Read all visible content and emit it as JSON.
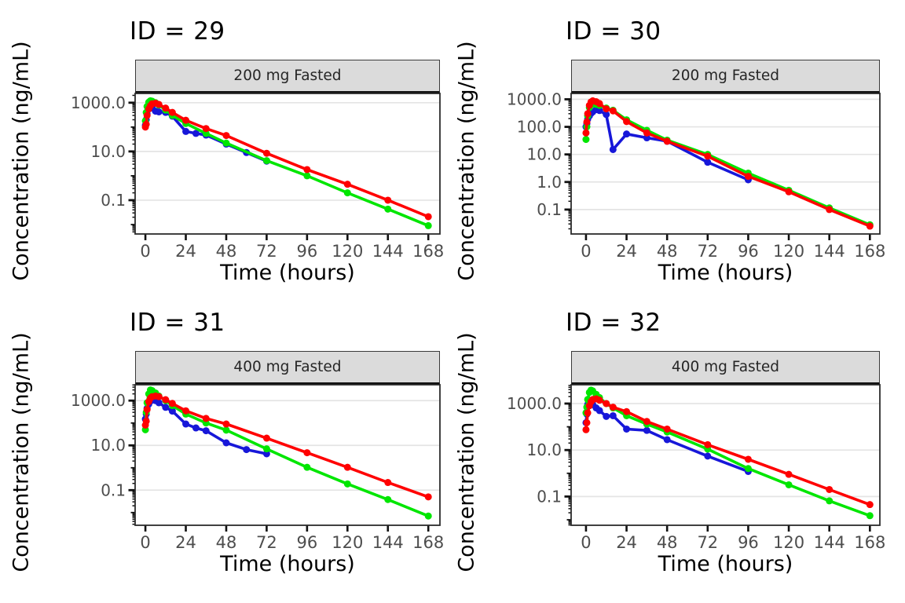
{
  "figure": {
    "background": "#FFFFFF",
    "tick_label_color": "#4D4D4D",
    "grid_color": "#E4E4E4",
    "panel_border_color": "#2B2B2B",
    "strip_background": "#DBDBDB",
    "series_colors": {
      "red": "#FF0000",
      "green": "#00E600",
      "blue": "#1717D9"
    }
  },
  "chart_data": [
    {
      "type": "line",
      "title": "ID = 29",
      "facet_label": "200 mg Fasted",
      "xlabel": "Time (hours)",
      "ylabel": "Concentration (ng/mL)",
      "x_ticks": [
        0,
        24,
        48,
        72,
        96,
        120,
        144,
        168
      ],
      "y_ticks": [
        1000.0,
        10.0,
        0.1
      ],
      "xlim": [
        -6.1,
        174.9
      ],
      "ylim": [
        0.0041,
        2400
      ],
      "y_scale": "log10",
      "grid": "major-y",
      "legend": "none",
      "series": [
        {
          "name": "blue",
          "color": "#1717D9",
          "x": [
            0,
            0.5,
            1,
            2,
            3,
            4,
            6,
            8,
            12,
            16,
            24,
            30,
            36,
            48,
            60,
            72
          ],
          "y": [
            120,
            200,
            350,
            550,
            650,
            600,
            450,
            420,
            400,
            280,
            66,
            55,
            47,
            20,
            9,
            4
          ]
        },
        {
          "name": "green",
          "color": "#00E600",
          "x": [
            0,
            0.5,
            1,
            2,
            3,
            4,
            6,
            8,
            12,
            16,
            24,
            36,
            48,
            72,
            96,
            120,
            144,
            168
          ],
          "y": [
            180,
            400,
            700,
            1050,
            1200,
            1150,
            1000,
            800,
            500,
            300,
            140,
            55,
            22,
            4.2,
            1.0,
            0.2,
            0.043,
            0.009
          ]
        },
        {
          "name": "red",
          "color": "#FF0000",
          "x": [
            0,
            0.5,
            1,
            2,
            3,
            4,
            6,
            8,
            12,
            16,
            24,
            36,
            48,
            72,
            96,
            120,
            144,
            168
          ],
          "y": [
            100,
            130,
            300,
            550,
            750,
            900,
            950,
            850,
            600,
            400,
            190,
            87,
            45,
            8.4,
            1.8,
            0.45,
            0.1,
            0.021
          ]
        }
      ]
    },
    {
      "type": "line",
      "title": "ID = 30",
      "facet_label": "200 mg Fasted",
      "xlabel": "Time (hours)",
      "ylabel": "Concentration (ng/mL)",
      "x_ticks": [
        0,
        24,
        48,
        72,
        96,
        120,
        144,
        168
      ],
      "y_ticks": [
        1000.0,
        100.0,
        10.0,
        1.0,
        0.1
      ],
      "xlim": [
        -8.8,
        173.9
      ],
      "ylim": [
        0.013,
        1630
      ],
      "y_scale": "log10",
      "grid": "major-y",
      "legend": "none",
      "series": [
        {
          "name": "blue",
          "color": "#1717D9",
          "x": [
            0,
            0.5,
            1,
            2,
            3,
            4,
            6,
            8,
            12,
            16,
            24,
            36,
            48,
            72,
            96
          ],
          "y": [
            100,
            130,
            190,
            250,
            310,
            350,
            420,
            390,
            280,
            15,
            55,
            40,
            30,
            5.2,
            1.2
          ]
        },
        {
          "name": "green",
          "color": "#00E600",
          "x": [
            0,
            0.5,
            1,
            2,
            3,
            4,
            6,
            8,
            12,
            16,
            24,
            36,
            48,
            72,
            96,
            120,
            144,
            168
          ],
          "y": [
            35,
            100,
            250,
            500,
            650,
            680,
            650,
            600,
            480,
            400,
            180,
            75,
            33,
            10,
            2.1,
            0.5,
            0.115,
            0.028
          ]
        },
        {
          "name": "red",
          "color": "#FF0000",
          "x": [
            0,
            0.5,
            1,
            2,
            3,
            4,
            6,
            8,
            12,
            16,
            24,
            36,
            48,
            72,
            96,
            120,
            144,
            168
          ],
          "y": [
            60,
            150,
            300,
            600,
            800,
            880,
            820,
            700,
            450,
            380,
            155,
            60,
            30,
            8.6,
            1.6,
            0.44,
            0.1,
            0.025
          ]
        }
      ]
    },
    {
      "type": "line",
      "title": "ID = 31",
      "facet_label": "400 mg Fasted",
      "xlabel": "Time (hours)",
      "ylabel": "Concentration (ng/mL)",
      "x_ticks": [
        0,
        24,
        48,
        72,
        96,
        120,
        144,
        168
      ],
      "y_ticks": [
        1000.0,
        10.0,
        0.1
      ],
      "xlim": [
        -6.1,
        174.9
      ],
      "ylim": [
        0.0027,
        5120
      ],
      "y_scale": "log10",
      "grid": "major-y",
      "legend": "none",
      "series": [
        {
          "name": "blue",
          "color": "#1717D9",
          "x": [
            0,
            0.5,
            1,
            2,
            3,
            4,
            6,
            8,
            12,
            16,
            24,
            30,
            36,
            48,
            60,
            72
          ],
          "y": [
            150,
            250,
            450,
            700,
            950,
            1050,
            1000,
            800,
            500,
            340,
            90,
            60,
            45,
            13,
            6.5,
            4.2
          ]
        },
        {
          "name": "green",
          "color": "#00E600",
          "x": [
            0,
            0.5,
            1,
            2,
            3,
            4,
            6,
            8,
            12,
            16,
            24,
            36,
            48,
            72,
            96,
            120,
            144,
            168
          ],
          "y": [
            50,
            300,
            800,
            2000,
            3000,
            2800,
            2200,
            1600,
            1000,
            600,
            250,
            100,
            48,
            7,
            1.05,
            0.19,
            0.038,
            0.007
          ]
        },
        {
          "name": "red",
          "color": "#FF0000",
          "x": [
            0,
            0.5,
            1,
            2,
            3,
            4,
            6,
            8,
            12,
            16,
            24,
            36,
            48,
            72,
            96,
            120,
            144,
            168
          ],
          "y": [
            80,
            120,
            400,
            900,
            1300,
            1500,
            1600,
            1500,
            1100,
            750,
            350,
            160,
            90,
            21,
            4.7,
            1.05,
            0.22,
            0.05
          ]
        }
      ]
    },
    {
      "type": "line",
      "title": "ID = 32",
      "facet_label": "400 mg Fasted",
      "xlabel": "Time (hours)",
      "ylabel": "Concentration (ng/mL)",
      "x_ticks": [
        0,
        24,
        48,
        72,
        96,
        120,
        144,
        168
      ],
      "y_ticks": [
        1000.0,
        10.0,
        0.1
      ],
      "xlim": [
        -8.8,
        173.9
      ],
      "ylim": [
        0.0058,
        6460
      ],
      "y_scale": "log10",
      "grid": "major-y",
      "legend": "none",
      "series": [
        {
          "name": "blue",
          "color": "#1717D9",
          "x": [
            0,
            0.5,
            1,
            2,
            3,
            4,
            6,
            8,
            12,
            16,
            24,
            36,
            48,
            72,
            96
          ],
          "y": [
            150,
            350,
            900,
            1400,
            1200,
            900,
            650,
            500,
            280,
            300,
            80,
            70,
            28,
            5.5,
            1.2
          ]
        },
        {
          "name": "green",
          "color": "#00E600",
          "x": [
            0,
            0.5,
            1,
            2,
            3,
            4,
            6,
            8,
            12,
            16,
            24,
            36,
            48,
            72,
            96,
            120,
            144,
            168
          ],
          "y": [
            400,
            700,
            1500,
            3000,
            3800,
            3500,
            2500,
            1800,
            1000,
            650,
            300,
            130,
            60,
            11,
            1.6,
            0.32,
            0.065,
            0.015
          ]
        },
        {
          "name": "red",
          "color": "#FF0000",
          "x": [
            0,
            0.5,
            1,
            2,
            3,
            4,
            6,
            8,
            12,
            16,
            24,
            36,
            48,
            72,
            96,
            120,
            144,
            168
          ],
          "y": [
            75,
            150,
            400,
            800,
            1200,
            1500,
            1600,
            1400,
            1000,
            700,
            450,
            170,
            80,
            17,
            4.0,
            0.9,
            0.2,
            0.045
          ]
        }
      ]
    }
  ]
}
